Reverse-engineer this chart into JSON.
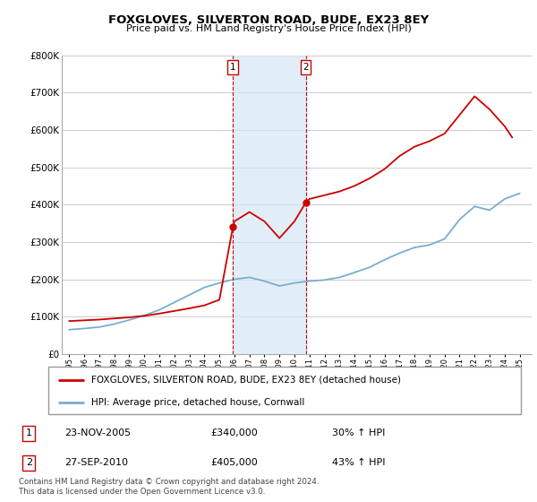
{
  "title": "FOXGLOVES, SILVERTON ROAD, BUDE, EX23 8EY",
  "subtitle": "Price paid vs. HM Land Registry's House Price Index (HPI)",
  "legend_line1": "FOXGLOVES, SILVERTON ROAD, BUDE, EX23 8EY (detached house)",
  "legend_line2": "HPI: Average price, detached house, Cornwall",
  "transaction1_date": "23-NOV-2005",
  "transaction1_price": "£340,000",
  "transaction1_hpi": "30% ↑ HPI",
  "transaction2_date": "27-SEP-2010",
  "transaction2_price": "£405,000",
  "transaction2_hpi": "43% ↑ HPI",
  "copyright_text": "Contains HM Land Registry data © Crown copyright and database right 2024.\nThis data is licensed under the Open Government Licence v3.0.",
  "red_color": "#cc0000",
  "blue_color": "#7aadcf",
  "grid_color": "#cccccc",
  "ylim": [
    0,
    800000
  ],
  "yticks": [
    0,
    100000,
    200000,
    300000,
    400000,
    500000,
    600000,
    700000,
    800000
  ],
  "hpi_x": [
    1995,
    1996,
    1997,
    1998,
    1999,
    2000,
    2001,
    2002,
    2003,
    2004,
    2005,
    2006,
    2007,
    2008,
    2009,
    2010,
    2011,
    2012,
    2013,
    2014,
    2015,
    2016,
    2017,
    2018,
    2019,
    2020,
    2021,
    2022,
    2023,
    2024,
    2025
  ],
  "hpi_y": [
    65000,
    68000,
    72000,
    80000,
    91000,
    103000,
    118000,
    138000,
    158000,
    178000,
    190000,
    200000,
    205000,
    195000,
    182000,
    190000,
    195000,
    198000,
    205000,
    218000,
    232000,
    252000,
    270000,
    285000,
    292000,
    308000,
    360000,
    395000,
    385000,
    415000,
    430000
  ],
  "red_x": [
    1995,
    1996,
    1997,
    1998,
    1999,
    2000,
    2001,
    2002,
    2003,
    2004,
    2005,
    2005.9,
    2006,
    2007,
    2008,
    2009,
    2010,
    2010.75,
    2011,
    2012,
    2013,
    2014,
    2015,
    2016,
    2017,
    2018,
    2019,
    2020,
    2021,
    2022,
    2023,
    2024,
    2024.5
  ],
  "red_y": [
    88000,
    90000,
    92000,
    95000,
    98000,
    102000,
    108000,
    115000,
    122000,
    130000,
    145000,
    340000,
    355000,
    380000,
    355000,
    310000,
    355000,
    405000,
    415000,
    425000,
    435000,
    450000,
    470000,
    495000,
    530000,
    555000,
    570000,
    590000,
    640000,
    690000,
    655000,
    610000,
    580000
  ],
  "sale1_x": 2005.9,
  "sale1_y": 340000,
  "sale2_x": 2010.75,
  "sale2_y": 405000,
  "vline1_x": 2005.9,
  "vline2_x": 2010.75,
  "xlim": [
    1994.5,
    2025.8
  ],
  "xtick_years": [
    1995,
    1996,
    1997,
    1998,
    1999,
    2000,
    2001,
    2002,
    2003,
    2004,
    2005,
    2006,
    2007,
    2008,
    2009,
    2010,
    2011,
    2012,
    2013,
    2014,
    2015,
    2016,
    2017,
    2018,
    2019,
    2020,
    2021,
    2022,
    2023,
    2024,
    2025
  ]
}
